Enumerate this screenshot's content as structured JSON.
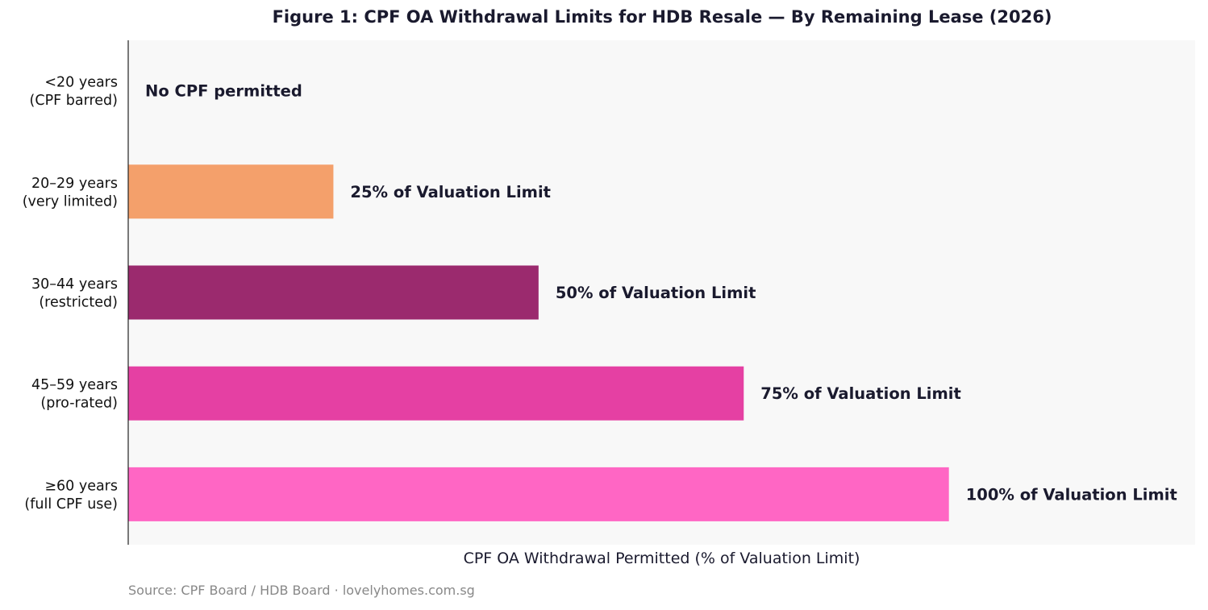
{
  "chart_data": {
    "type": "bar",
    "orientation": "horizontal",
    "title": "Figure 1: CPF OA Withdrawal Limits for HDB Resale — By Remaining Lease (2026)",
    "xlabel": "CPF OA Withdrawal Permitted (% of Valuation Limit)",
    "ylabel": "",
    "xlim": [
      0,
      130
    ],
    "grid": false,
    "categories": [
      [
        "<20 years",
        "(CPF barred)"
      ],
      [
        "20–29 years",
        "(very limited)"
      ],
      [
        "30–44 years",
        "(restricted)"
      ],
      [
        "45–59 years",
        "(pro-rated)"
      ],
      [
        "≥60 years",
        "(full CPF use)"
      ]
    ],
    "values": [
      0,
      25,
      50,
      75,
      100
    ],
    "colors": [
      "#cccccc",
      "#f4a06b",
      "#9b2a6e",
      "#e540a3",
      "#ff66c4"
    ],
    "data_labels": [
      "No CPF permitted",
      "25% of Valuation Limit",
      "50% of Valuation Limit",
      "75% of Valuation Limit",
      "100% of Valuation Limit"
    ],
    "plot_background": "#f8f8f8"
  },
  "source": "Source: CPF Board / HDB Board · lovelyhomes.com.sg"
}
